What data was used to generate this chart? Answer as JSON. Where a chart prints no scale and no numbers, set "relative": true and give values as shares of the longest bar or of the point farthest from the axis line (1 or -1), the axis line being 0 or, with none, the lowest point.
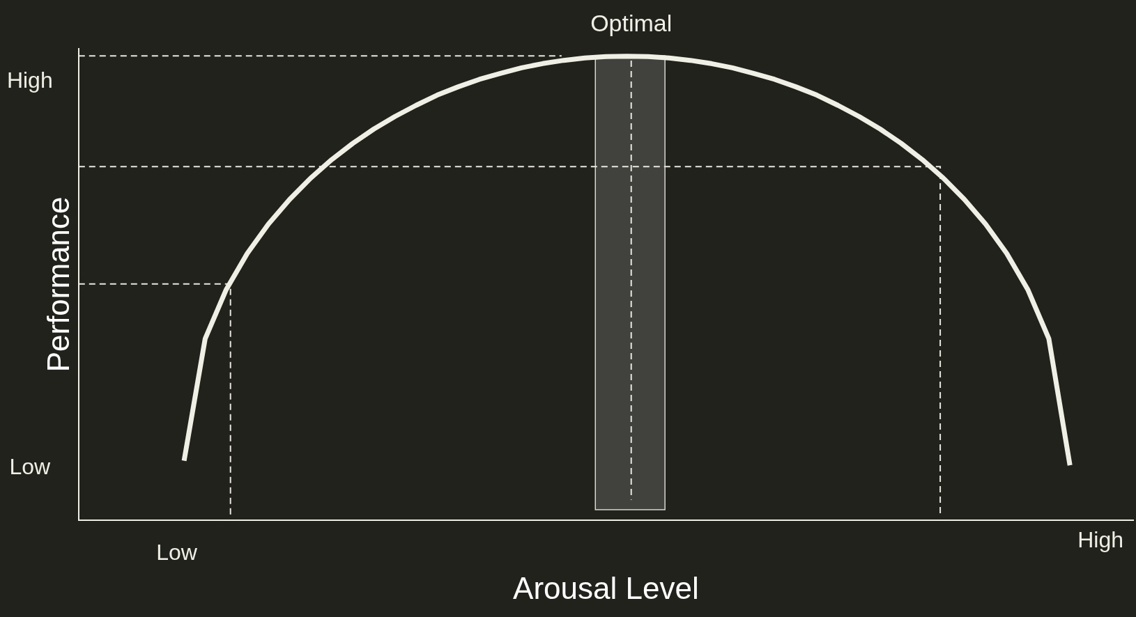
{
  "chart_data": {
    "type": "line",
    "xlabel": "Arousal Level",
    "ylabel": "Performance",
    "relative": true,
    "marker": "none",
    "categories": [
      null,
      null,
      null,
      null,
      null,
      null,
      null,
      null,
      null,
      null,
      null,
      null,
      null,
      null,
      null,
      null,
      null,
      null,
      null,
      null,
      null,
      null,
      null,
      null,
      null,
      null,
      null,
      null,
      null,
      null,
      null,
      null,
      null,
      null,
      null,
      null,
      null,
      null,
      null,
      null,
      null,
      null,
      null,
      null,
      null,
      null,
      null,
      null,
      null,
      null,
      null
    ],
    "annotations": [
      "Optimal",
      "High",
      "Low",
      "Low",
      "High"
    ],
    "series": [
      {
        "color": "#f0efe6",
        "values": [
          null,
          null,
          null,
          null,
          null,
          0.128,
          0.391,
          0.497,
          0.575,
          0.638,
          0.691,
          0.737,
          0.777,
          0.812,
          0.843,
          0.87,
          0.894,
          0.916,
          0.934,
          0.95,
          0.963,
          0.975,
          0.984,
          0.991,
          0.996,
          0.999,
          1,
          0.999,
          0.996,
          0.991,
          0.984,
          0.975,
          0.963,
          0.95,
          0.934,
          0.916,
          0.894,
          0.87,
          0.843,
          0.812,
          0.777,
          0.737,
          0.691,
          0.638,
          0.575,
          0.497,
          0.391,
          0.118,
          null,
          null,
          null
        ]
      }
    ]
  }
}
